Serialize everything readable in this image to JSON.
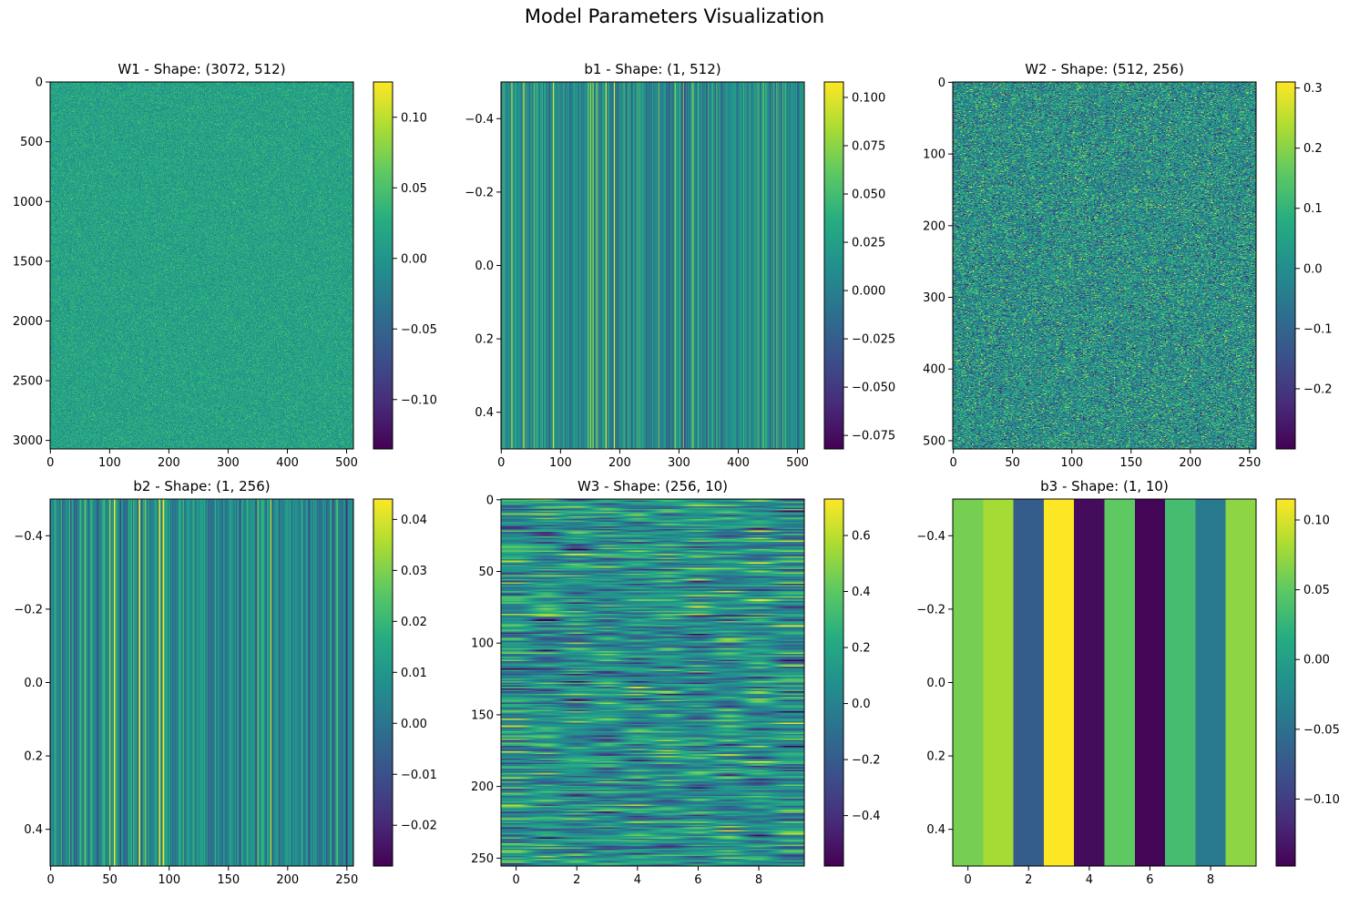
{
  "figure": {
    "suptitle": "Model Parameters Visualization"
  },
  "chart_data": [
    {
      "type": "heatmap",
      "title": "W1 - Shape: (3072, 512)",
      "shape": [
        3072,
        512
      ],
      "pattern": "noise",
      "seed": 11,
      "x_ticks": [
        0,
        100,
        200,
        300,
        400,
        500
      ],
      "y_ticks": [
        0,
        500,
        1000,
        1500,
        2000,
        2500,
        3000
      ],
      "xlim": [
        -0.5,
        511.5
      ],
      "ylim": [
        3071.5,
        -0.5
      ],
      "colorbar": {
        "range": [
          -0.135,
          0.125
        ],
        "ticks": [
          -0.1,
          -0.05,
          0.0,
          0.05,
          0.1
        ],
        "tick_labels": [
          "−0.10",
          "−0.05",
          "0.00",
          "0.05",
          "0.10"
        ]
      }
    },
    {
      "type": "heatmap",
      "title": "b1 - Shape: (1, 512)",
      "shape": [
        1,
        512
      ],
      "pattern": "stripes",
      "seed": 23,
      "x_ticks": [
        0,
        100,
        200,
        300,
        400,
        500
      ],
      "y_ticks": [
        -0.4,
        -0.2,
        0.0,
        0.2,
        0.4
      ],
      "y_tick_labels": [
        "−0.4",
        "−0.2",
        "0.0",
        "0.2",
        "0.4"
      ],
      "xlim": [
        -0.5,
        511.5
      ],
      "ylim": [
        0.5,
        -0.5
      ],
      "colorbar": {
        "range": [
          -0.082,
          0.108
        ],
        "ticks": [
          -0.075,
          -0.05,
          -0.025,
          0.0,
          0.025,
          0.05,
          0.075,
          0.1
        ],
        "tick_labels": [
          "−0.075",
          "−0.050",
          "−0.025",
          "0.000",
          "0.025",
          "0.050",
          "0.075",
          "0.100"
        ]
      }
    },
    {
      "type": "heatmap",
      "title": "W2 - Shape: (512, 256)",
      "shape": [
        512,
        256
      ],
      "pattern": "noise",
      "seed": 37,
      "x_ticks": [
        0,
        50,
        100,
        150,
        200,
        250
      ],
      "y_ticks": [
        0,
        100,
        200,
        300,
        400,
        500
      ],
      "xlim": [
        -0.5,
        255.5
      ],
      "ylim": [
        511.5,
        -0.5
      ],
      "colorbar": {
        "range": [
          -0.3,
          0.31
        ],
        "ticks": [
          -0.2,
          -0.1,
          0.0,
          0.1,
          0.2,
          0.3
        ],
        "tick_labels": [
          "−0.2",
          "−0.1",
          "0.0",
          "0.1",
          "0.2",
          "0.3"
        ]
      }
    },
    {
      "type": "heatmap",
      "title": "b2 - Shape: (1, 256)",
      "shape": [
        1,
        256
      ],
      "pattern": "stripes",
      "seed": 41,
      "x_ticks": [
        0,
        50,
        100,
        150,
        200,
        250
      ],
      "y_ticks": [
        -0.4,
        -0.2,
        0.0,
        0.2,
        0.4
      ],
      "y_tick_labels": [
        "−0.4",
        "−0.2",
        "0.0",
        "0.2",
        "0.4"
      ],
      "xlim": [
        -0.5,
        255.5
      ],
      "ylim": [
        0.5,
        -0.5
      ],
      "colorbar": {
        "range": [
          -0.028,
          0.044
        ],
        "ticks": [
          -0.02,
          -0.01,
          0.0,
          0.01,
          0.02,
          0.03,
          0.04
        ],
        "tick_labels": [
          "−0.02",
          "−0.01",
          "0.00",
          "0.01",
          "0.02",
          "0.03",
          "0.04"
        ]
      }
    },
    {
      "type": "heatmap",
      "title": "W3 - Shape: (256, 10)",
      "shape": [
        256,
        10
      ],
      "pattern": "smooth",
      "seed": 53,
      "x_ticks": [
        0,
        2,
        4,
        6,
        8
      ],
      "y_ticks": [
        0,
        50,
        100,
        150,
        200,
        250
      ],
      "xlim": [
        -0.5,
        9.5
      ],
      "ylim": [
        255.5,
        -0.5
      ],
      "colorbar": {
        "range": [
          -0.58,
          0.73
        ],
        "ticks": [
          -0.4,
          -0.2,
          0.0,
          0.2,
          0.4,
          0.6
        ],
        "tick_labels": [
          "−0.4",
          "−0.2",
          "0.0",
          "0.2",
          "0.4",
          "0.6"
        ]
      }
    },
    {
      "type": "heatmap",
      "title": "b3 - Shape: (1, 10)",
      "shape": [
        1,
        10
      ],
      "pattern": "values",
      "values": [
        0.06,
        0.08,
        -0.07,
        0.115,
        -0.14,
        0.05,
        -0.145,
        0.035,
        -0.04,
        0.07
      ],
      "x_ticks": [
        0,
        2,
        4,
        6,
        8
      ],
      "y_ticks": [
        -0.4,
        -0.2,
        0.0,
        0.2,
        0.4
      ],
      "y_tick_labels": [
        "−0.4",
        "−0.2",
        "0.0",
        "0.2",
        "0.4"
      ],
      "xlim": [
        -0.5,
        9.5
      ],
      "ylim": [
        0.5,
        -0.5
      ],
      "colorbar": {
        "range": [
          -0.148,
          0.115
        ],
        "ticks": [
          -0.1,
          -0.05,
          0.0,
          0.05,
          0.1
        ],
        "tick_labels": [
          "−0.10",
          "−0.05",
          "0.00",
          "0.05",
          "0.10"
        ]
      }
    }
  ]
}
